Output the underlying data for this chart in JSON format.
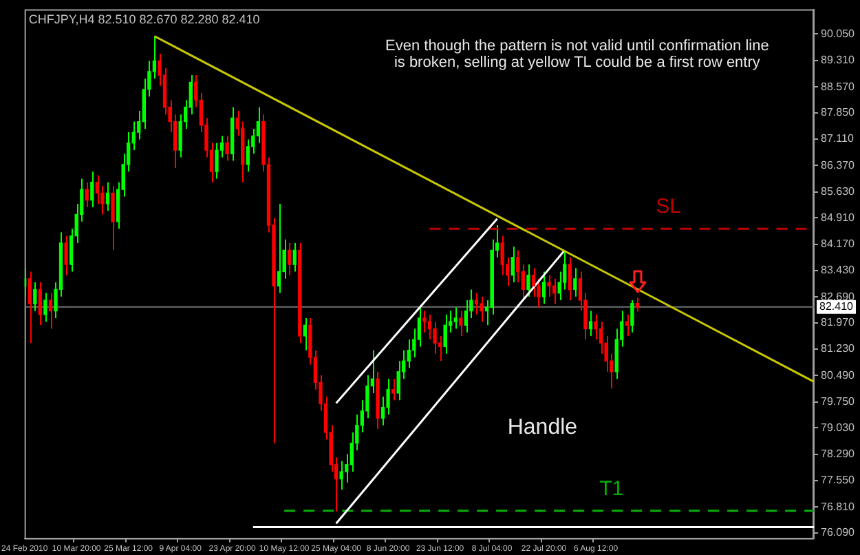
{
  "chart_data": {
    "type": "candlestick",
    "title": "CHFJPY,H4 82.510 82.670 82.280 82.410",
    "categories": [
      "24 Feb 2010",
      null,
      null,
      null,
      null,
      null,
      null,
      null,
      null,
      null,
      "10 Mar 20:00",
      null,
      null,
      null,
      null,
      null,
      null,
      null,
      null,
      null,
      "25 Mar 12:00",
      null,
      null,
      null,
      null,
      null,
      null,
      null,
      null,
      null,
      "9 Apr 04:00",
      null,
      null,
      null,
      null,
      null,
      null,
      null,
      null,
      null,
      "23 Apr 20:00",
      null,
      null,
      null,
      null,
      null,
      null,
      null,
      null,
      null,
      "10 May 12:00",
      null,
      null,
      null,
      null,
      null,
      null,
      null,
      null,
      null,
      "25 May 04:00",
      null,
      null,
      null,
      null,
      null,
      null,
      null,
      null,
      null,
      "8 Jun 20:00",
      null,
      null,
      null,
      null,
      null,
      null,
      null,
      null,
      null,
      "23 Jun 12:00",
      null,
      null,
      null,
      null,
      null,
      null,
      null,
      null,
      null,
      "8 Jul 04:00",
      null,
      null,
      null,
      null,
      null,
      null,
      null,
      null,
      null,
      "22 Jul 20:00",
      null,
      null,
      null,
      null,
      null,
      null,
      null,
      null,
      null,
      "6 Aug 12:00",
      null,
      null,
      null,
      null,
      null,
      null,
      null,
      null,
      null,
      null,
      null,
      null,
      null,
      null,
      null,
      null,
      null,
      null,
      null,
      null,
      null,
      null,
      null,
      null,
      null,
      null,
      null,
      null,
      null,
      null,
      null,
      null,
      null,
      null,
      null,
      null,
      null,
      null,
      null,
      null,
      null,
      null
    ],
    "series": [
      {
        "type": "candlestick",
        "ohlc": [
          [
            83.0,
            83.5,
            82.7,
            83.2
          ],
          [
            83.2,
            83.4,
            81.4,
            82.5
          ],
          [
            82.5,
            83.1,
            82.3,
            82.9
          ],
          [
            82.9,
            83.1,
            81.9,
            82.2
          ],
          [
            82.2,
            82.8,
            82.0,
            82.6
          ],
          [
            82.6,
            82.8,
            81.8,
            82.3
          ],
          [
            82.3,
            83.1,
            82.1,
            82.9
          ],
          [
            82.9,
            84.5,
            82.7,
            84.2
          ],
          [
            84.2,
            84.4,
            83.3,
            83.6
          ],
          [
            83.6,
            84.6,
            83.4,
            84.4
          ],
          [
            84.4,
            85.3,
            84.2,
            85.0
          ],
          [
            85.0,
            86.0,
            84.8,
            85.7
          ],
          [
            85.7,
            85.9,
            85.2,
            85.4
          ],
          [
            85.4,
            86.2,
            85.2,
            85.9
          ],
          [
            85.9,
            86.1,
            85.3,
            85.6
          ],
          [
            85.6,
            85.8,
            85.0,
            85.3
          ],
          [
            85.3,
            85.9,
            85.1,
            85.6
          ],
          [
            85.6,
            85.8,
            84.0,
            84.8
          ],
          [
            84.8,
            85.9,
            84.6,
            85.7
          ],
          [
            85.7,
            86.7,
            85.5,
            86.4
          ],
          [
            86.4,
            87.3,
            86.2,
            87.0
          ],
          [
            87.0,
            87.6,
            86.8,
            87.3
          ],
          [
            87.3,
            87.9,
            87.1,
            87.6
          ],
          [
            87.6,
            88.8,
            87.4,
            88.5
          ],
          [
            88.5,
            89.3,
            88.3,
            89.0
          ],
          [
            89.0,
            89.99,
            88.8,
            89.3
          ],
          [
            89.3,
            89.5,
            88.6,
            88.9
          ],
          [
            88.9,
            89.1,
            87.8,
            88.0
          ],
          [
            88.0,
            88.2,
            87.3,
            87.6
          ],
          [
            87.6,
            87.8,
            86.3,
            86.8
          ],
          [
            86.8,
            87.8,
            86.6,
            87.6
          ],
          [
            87.6,
            88.2,
            87.4,
            88.0
          ],
          [
            88.0,
            88.9,
            87.8,
            88.7
          ],
          [
            88.7,
            88.9,
            88.0,
            88.2
          ],
          [
            88.2,
            88.4,
            87.3,
            87.5
          ],
          [
            87.5,
            87.7,
            86.6,
            86.8
          ],
          [
            86.8,
            87.0,
            85.9,
            86.2
          ],
          [
            86.2,
            87.0,
            86.0,
            86.8
          ],
          [
            86.8,
            87.2,
            86.6,
            87.0
          ],
          [
            87.0,
            87.2,
            86.5,
            86.7
          ],
          [
            86.7,
            88.0,
            86.5,
            87.7
          ],
          [
            87.7,
            87.9,
            87.2,
            87.4
          ],
          [
            87.4,
            87.6,
            85.9,
            86.4
          ],
          [
            86.4,
            87.1,
            86.2,
            86.9
          ],
          [
            86.9,
            87.4,
            86.7,
            87.2
          ],
          [
            87.2,
            88.0,
            87.0,
            87.6
          ],
          [
            87.6,
            87.8,
            86.2,
            86.4
          ],
          [
            86.4,
            86.6,
            84.5,
            84.7
          ],
          [
            84.7,
            84.9,
            78.6,
            83.0
          ],
          [
            83.0,
            85.3,
            82.8,
            83.4
          ],
          [
            83.4,
            84.3,
            83.2,
            84.0
          ],
          [
            84.0,
            84.2,
            83.3,
            83.6
          ],
          [
            83.6,
            84.2,
            83.4,
            84.0
          ],
          [
            84.0,
            84.2,
            81.4,
            81.6
          ],
          [
            81.6,
            82.1,
            81.2,
            81.9
          ],
          [
            81.9,
            82.1,
            80.8,
            81.0
          ],
          [
            81.0,
            81.2,
            80.1,
            80.3
          ],
          [
            80.3,
            80.5,
            79.5,
            79.7
          ],
          [
            79.7,
            79.9,
            78.7,
            78.9
          ],
          [
            78.9,
            79.1,
            77.8,
            78.0
          ],
          [
            78.0,
            78.2,
            76.69,
            77.6
          ],
          [
            77.6,
            78.1,
            77.3,
            77.8
          ],
          [
            77.8,
            78.3,
            77.5,
            78.0
          ],
          [
            78.0,
            78.9,
            77.8,
            78.6
          ],
          [
            78.6,
            79.4,
            78.4,
            79.1
          ],
          [
            79.1,
            79.8,
            78.9,
            79.5
          ],
          [
            79.5,
            80.5,
            79.3,
            80.2
          ],
          [
            80.2,
            81.2,
            80.0,
            80.4
          ],
          [
            80.4,
            80.6,
            79.0,
            79.3
          ],
          [
            79.3,
            79.9,
            79.1,
            79.6
          ],
          [
            79.6,
            80.4,
            79.4,
            80.1
          ],
          [
            80.1,
            80.4,
            79.8,
            80.0
          ],
          [
            80.0,
            80.9,
            79.8,
            80.6
          ],
          [
            80.6,
            81.2,
            80.4,
            80.9
          ],
          [
            80.9,
            81.5,
            80.7,
            81.2
          ],
          [
            81.2,
            81.8,
            81.0,
            81.5
          ],
          [
            81.5,
            82.4,
            81.3,
            82.1
          ],
          [
            82.1,
            82.3,
            81.7,
            82.0
          ],
          [
            82.0,
            82.2,
            81.5,
            81.8
          ],
          [
            81.8,
            82.0,
            81.1,
            81.4
          ],
          [
            81.4,
            81.6,
            80.9,
            81.3
          ],
          [
            81.3,
            82.2,
            81.1,
            81.9
          ],
          [
            81.9,
            82.3,
            81.7,
            82.0
          ],
          [
            82.0,
            82.4,
            81.8,
            82.1
          ],
          [
            82.1,
            82.3,
            81.6,
            81.9
          ],
          [
            81.9,
            82.6,
            81.7,
            82.3
          ],
          [
            82.3,
            82.9,
            82.1,
            82.6
          ],
          [
            82.6,
            82.8,
            82.2,
            82.5
          ],
          [
            82.5,
            82.7,
            82.0,
            82.3
          ],
          [
            82.3,
            82.6,
            81.9,
            82.4
          ],
          [
            82.4,
            84.3,
            82.2,
            84.0
          ],
          [
            84.0,
            84.7,
            83.8,
            84.2
          ],
          [
            84.2,
            84.4,
            83.3,
            83.6
          ],
          [
            83.6,
            83.8,
            83.0,
            83.3
          ],
          [
            83.3,
            84.1,
            83.1,
            83.8
          ],
          [
            83.8,
            84.0,
            83.1,
            83.4
          ],
          [
            83.4,
            83.6,
            82.6,
            82.9
          ],
          [
            82.9,
            83.6,
            82.7,
            83.3
          ],
          [
            83.3,
            83.5,
            82.7,
            83.0
          ],
          [
            83.0,
            83.2,
            82.4,
            82.7
          ],
          [
            82.7,
            83.4,
            82.5,
            83.1
          ],
          [
            83.1,
            83.3,
            82.7,
            83.0
          ],
          [
            83.0,
            83.2,
            82.5,
            82.8
          ],
          [
            82.8,
            83.4,
            82.6,
            83.1
          ],
          [
            83.1,
            84.0,
            82.9,
            83.6
          ],
          [
            83.6,
            83.8,
            82.6,
            82.9
          ],
          [
            82.9,
            83.5,
            82.7,
            83.2
          ],
          [
            83.2,
            83.4,
            82.3,
            82.6
          ],
          [
            82.6,
            82.8,
            81.5,
            81.8
          ],
          [
            81.8,
            82.3,
            81.6,
            82.0
          ],
          [
            82.0,
            82.2,
            81.5,
            81.8
          ],
          [
            81.8,
            82.0,
            81.1,
            81.4
          ],
          [
            81.4,
            81.6,
            80.6,
            80.9
          ],
          [
            80.9,
            81.1,
            80.13,
            80.6
          ],
          [
            80.6,
            81.8,
            80.4,
            81.5
          ],
          [
            81.5,
            82.3,
            81.3,
            82.0
          ],
          [
            82.0,
            82.2,
            81.6,
            81.9
          ],
          [
            81.9,
            82.6,
            81.7,
            82.51
          ],
          [
            82.51,
            82.67,
            82.28,
            82.41
          ],
          null,
          null,
          null,
          null,
          null,
          null,
          null,
          null,
          null,
          null,
          null,
          null,
          null,
          null,
          null,
          null,
          null,
          null,
          null,
          null,
          null,
          null,
          null,
          null,
          null,
          null,
          null,
          null,
          null,
          null,
          null,
          null,
          null,
          null
        ],
        "colors": [
          "#00ff00",
          "#ff0000",
          "#00ff00",
          "#ff0000",
          "#00ff00",
          "#ff0000",
          "#00ff00",
          "#00ff00",
          "#ff0000",
          "#00ff00",
          "#00ff00",
          "#00ff00",
          "#ff0000",
          "#00ff00",
          "#ff0000",
          "#ff0000",
          "#00ff00",
          "#ff0000",
          "#00ff00",
          "#00ff00",
          "#00ff00",
          "#00ff00",
          "#00ff00",
          "#00ff00",
          "#00ff00",
          "#00ff00",
          "#ff0000",
          "#ff0000",
          "#ff0000",
          "#ff0000",
          "#00ff00",
          "#00ff00",
          "#00ff00",
          "#ff0000",
          "#ff0000",
          "#ff0000",
          "#ff0000",
          "#00ff00",
          "#00ff00",
          "#ff0000",
          "#00ff00",
          "#ff0000",
          "#ff0000",
          "#00ff00",
          "#00ff00",
          "#00ff00",
          "#ff0000",
          "#ff0000",
          "#ff0000",
          "#00ff00",
          "#00ff00",
          "#ff0000",
          "#00ff00",
          "#ff0000",
          "#00ff00",
          "#ff0000",
          "#ff0000",
          "#ff0000",
          "#ff0000",
          "#ff0000",
          "#ff0000",
          "#00ff00",
          "#00ff00",
          "#00ff00",
          "#00ff00",
          "#00ff00",
          "#00ff00",
          "#00ff00",
          "#ff0000",
          "#00ff00",
          "#00ff00",
          "#ff0000",
          "#00ff00",
          "#00ff00",
          "#00ff00",
          "#00ff00",
          "#00ff00",
          "#ff0000",
          "#ff0000",
          "#ff0000",
          "#ff0000",
          "#00ff00",
          "#00ff00",
          "#00ff00",
          "#ff0000",
          "#00ff00",
          "#00ff00",
          "#ff0000",
          "#ff0000",
          "#00ff00",
          "#00ff00",
          "#00ff00",
          "#ff0000",
          "#ff0000",
          "#00ff00",
          "#ff0000",
          "#ff0000",
          "#00ff00",
          "#ff0000",
          "#ff0000",
          "#00ff00",
          "#ff0000",
          "#ff0000",
          "#00ff00",
          "#00ff00",
          "#ff0000",
          "#00ff00",
          "#ff0000",
          "#ff0000",
          "#00ff00",
          "#ff0000",
          "#ff0000",
          "#ff0000",
          "#ff0000",
          "#00ff00",
          "#00ff00",
          "#ff0000",
          "#00ff00",
          "#ff0000",
          null,
          null,
          null,
          null,
          null,
          null,
          null,
          null,
          null,
          null,
          null,
          null,
          null,
          null,
          null,
          null,
          null,
          null,
          null,
          null,
          null,
          null,
          null,
          null,
          null,
          null,
          null,
          null,
          null,
          null,
          null,
          null,
          null,
          null
        ]
      },
      {
        "type": "line",
        "color": "#c8c800",
        "values": [
          null,
          null,
          null,
          null,
          null,
          null,
          null,
          null,
          null,
          null,
          null,
          null,
          null,
          null,
          null,
          null,
          null,
          null,
          null,
          null,
          null,
          null,
          null,
          null,
          null,
          89.99,
          null,
          null,
          null,
          null,
          null,
          null,
          null,
          null,
          null,
          null,
          null,
          null,
          null,
          null,
          null,
          null,
          null,
          null,
          null,
          null,
          null,
          null,
          null,
          null,
          null,
          null,
          null,
          null,
          null,
          null,
          null,
          null,
          null,
          null,
          null,
          null,
          null,
          null,
          null,
          null,
          null,
          null,
          null,
          null,
          null,
          null,
          null,
          null,
          null,
          null,
          null,
          null,
          null,
          null,
          null,
          null,
          null,
          null,
          null,
          null,
          null,
          null,
          null,
          null,
          null,
          null,
          null,
          null,
          null,
          null,
          null,
          null,
          null,
          null,
          null,
          null,
          null,
          null,
          null,
          null,
          null,
          null,
          null,
          null,
          null,
          null,
          null,
          null,
          null,
          null,
          null,
          null,
          null,
          null,
          null,
          null,
          null,
          null,
          null,
          null,
          null,
          null,
          null,
          null,
          null,
          null,
          null,
          null,
          null,
          null,
          null,
          null,
          null,
          null,
          null,
          null,
          null,
          null,
          null,
          null,
          null,
          null,
          null,
          null,
          null,
          null,
          80.32
        ]
      },
      {
        "type": "line",
        "color": "#ffffff",
        "values": [
          null,
          null,
          null,
          null,
          null,
          null,
          null,
          null,
          null,
          null,
          null,
          null,
          null,
          null,
          null,
          null,
          null,
          null,
          null,
          null,
          null,
          null,
          null,
          null,
          null,
          null,
          null,
          null,
          null,
          null,
          null,
          null,
          null,
          null,
          null,
          null,
          null,
          null,
          null,
          null,
          null,
          null,
          null,
          null,
          null,
          null,
          null,
          null,
          null,
          null,
          null,
          null,
          null,
          null,
          null,
          null,
          null,
          null,
          null,
          null,
          79.72,
          null,
          null,
          null,
          null,
          null,
          null,
          null,
          null,
          null,
          null,
          null,
          null,
          null,
          null,
          null,
          null,
          null,
          null,
          null,
          null,
          null,
          null,
          null,
          null,
          null,
          null,
          null,
          null,
          null,
          null,
          84.88,
          null,
          null,
          null,
          null,
          null,
          null,
          null,
          null,
          null,
          null,
          null,
          null,
          null,
          null,
          null,
          null,
          null,
          null,
          null,
          null,
          null,
          null,
          null,
          null,
          null,
          null,
          null,
          null,
          null,
          null,
          null,
          null,
          null,
          null,
          null,
          null,
          null,
          null,
          null,
          null,
          null,
          null,
          null,
          null,
          null,
          null,
          null,
          null,
          null,
          null,
          null,
          null,
          null,
          null,
          null,
          null,
          null,
          null,
          null,
          null,
          null
        ]
      },
      {
        "type": "line",
        "color": "#ffffff",
        "values": [
          null,
          null,
          null,
          null,
          null,
          null,
          null,
          null,
          null,
          null,
          null,
          null,
          null,
          null,
          null,
          null,
          null,
          null,
          null,
          null,
          null,
          null,
          null,
          null,
          null,
          null,
          null,
          null,
          null,
          null,
          null,
          null,
          null,
          null,
          null,
          null,
          null,
          null,
          null,
          null,
          null,
          null,
          null,
          null,
          null,
          null,
          null,
          null,
          null,
          null,
          null,
          null,
          null,
          null,
          null,
          null,
          null,
          null,
          null,
          null,
          76.35,
          null,
          null,
          null,
          null,
          null,
          null,
          null,
          null,
          null,
          null,
          null,
          null,
          null,
          null,
          null,
          null,
          null,
          null,
          null,
          null,
          null,
          null,
          null,
          null,
          null,
          null,
          null,
          null,
          null,
          null,
          null,
          null,
          null,
          null,
          null,
          null,
          null,
          null,
          null,
          null,
          null,
          null,
          null,
          84.0,
          null,
          null,
          null,
          null,
          null,
          null,
          null,
          null,
          null,
          null,
          null,
          null,
          null,
          null,
          null,
          null,
          null,
          null,
          null,
          null,
          null,
          null,
          null,
          null,
          null,
          null,
          null,
          null,
          null,
          null,
          null,
          null,
          null,
          null,
          null,
          null,
          null,
          null,
          null,
          null,
          null,
          null,
          null,
          null,
          null,
          null,
          null,
          null
        ]
      },
      {
        "type": "line",
        "color": "#ffffff",
        "values": [
          null,
          null,
          null,
          null,
          null,
          null,
          null,
          null,
          null,
          null,
          null,
          null,
          null,
          null,
          null,
          null,
          null,
          null,
          null,
          null,
          null,
          null,
          null,
          null,
          null,
          null,
          null,
          null,
          null,
          null,
          null,
          null,
          null,
          null,
          null,
          null,
          null,
          null,
          null,
          null,
          null,
          null,
          null,
          null,
          76.25,
          null,
          null,
          null,
          null,
          null,
          null,
          null,
          null,
          null,
          null,
          null,
          null,
          null,
          null,
          null,
          null,
          null,
          null,
          null,
          null,
          null,
          null,
          null,
          null,
          null,
          null,
          null,
          null,
          null,
          null,
          null,
          null,
          null,
          null,
          null,
          null,
          null,
          null,
          null,
          null,
          null,
          null,
          null,
          null,
          null,
          null,
          null,
          null,
          null,
          null,
          null,
          null,
          null,
          null,
          null,
          null,
          null,
          null,
          null,
          null,
          null,
          null,
          null,
          null,
          null,
          null,
          null,
          null,
          null,
          null,
          null,
          null,
          null,
          null,
          null,
          null,
          null,
          null,
          null,
          null,
          null,
          null,
          null,
          null,
          null,
          null,
          null,
          null,
          null,
          null,
          null,
          null,
          null,
          null,
          null,
          null,
          null,
          null,
          null,
          null,
          null,
          null,
          null,
          null,
          null,
          null,
          null,
          76.25
        ]
      },
      {
        "type": "line",
        "name": "SL",
        "color": "#c00000",
        "line_style": "dashed",
        "values": [
          null,
          null,
          null,
          null,
          null,
          null,
          null,
          null,
          null,
          null,
          null,
          null,
          null,
          null,
          null,
          null,
          null,
          null,
          null,
          null,
          null,
          null,
          null,
          null,
          null,
          null,
          null,
          null,
          null,
          null,
          null,
          null,
          null,
          null,
          null,
          null,
          null,
          null,
          null,
          null,
          null,
          null,
          null,
          null,
          null,
          null,
          null,
          null,
          null,
          null,
          null,
          null,
          null,
          null,
          null,
          null,
          null,
          null,
          null,
          null,
          null,
          null,
          null,
          null,
          null,
          null,
          null,
          null,
          null,
          null,
          null,
          null,
          null,
          null,
          null,
          null,
          null,
          null,
          84.6,
          null,
          null,
          null,
          null,
          null,
          null,
          null,
          null,
          null,
          null,
          null,
          null,
          null,
          null,
          null,
          null,
          null,
          null,
          null,
          null,
          null,
          null,
          null,
          null,
          null,
          null,
          null,
          null,
          null,
          null,
          null,
          null,
          null,
          null,
          null,
          null,
          null,
          null,
          null,
          null,
          null,
          null,
          null,
          null,
          null,
          null,
          null,
          null,
          null,
          null,
          null,
          null,
          null,
          null,
          null,
          null,
          null,
          null,
          null,
          null,
          null,
          null,
          null,
          null,
          null,
          null,
          null,
          null,
          null,
          null,
          null,
          null,
          null,
          84.6
        ]
      },
      {
        "type": "line",
        "name": "T1",
        "color": "#00b000",
        "line_style": "dashed",
        "values": [
          null,
          null,
          null,
          null,
          null,
          null,
          null,
          null,
          null,
          null,
          null,
          null,
          null,
          null,
          null,
          null,
          null,
          null,
          null,
          null,
          null,
          null,
          null,
          null,
          null,
          null,
          null,
          null,
          null,
          null,
          null,
          null,
          null,
          null,
          null,
          null,
          null,
          null,
          null,
          null,
          null,
          null,
          null,
          null,
          null,
          null,
          null,
          null,
          null,
          null,
          76.71,
          null,
          null,
          null,
          null,
          null,
          null,
          null,
          null,
          null,
          null,
          null,
          null,
          null,
          null,
          null,
          null,
          null,
          null,
          null,
          null,
          null,
          null,
          null,
          null,
          null,
          null,
          null,
          null,
          null,
          null,
          null,
          null,
          null,
          null,
          null,
          null,
          null,
          null,
          null,
          null,
          null,
          null,
          null,
          null,
          null,
          null,
          null,
          null,
          null,
          null,
          null,
          null,
          null,
          null,
          null,
          null,
          null,
          null,
          null,
          null,
          null,
          null,
          null,
          null,
          null,
          null,
          null,
          null,
          null,
          null,
          null,
          null,
          null,
          null,
          null,
          null,
          null,
          null,
          null,
          null,
          null,
          null,
          null,
          null,
          null,
          null,
          null,
          null,
          null,
          null,
          null,
          null,
          null,
          null,
          null,
          null,
          null,
          null,
          null,
          null,
          null,
          76.71
        ]
      }
    ],
    "ylim": [
      75.94,
      90.74
    ],
    "yticks": [
      {
        "value": 90.05,
        "label": "90.050"
      },
      {
        "value": 89.31,
        "label": "89.310"
      },
      {
        "value": 88.57,
        "label": "88.570"
      },
      {
        "value": 87.85,
        "label": "87.850"
      },
      {
        "value": 87.11,
        "label": "87.110"
      },
      {
        "value": 86.37,
        "label": "86.370"
      },
      {
        "value": 85.63,
        "label": "85.630"
      },
      {
        "value": 84.91,
        "label": "84.910"
      },
      {
        "value": 84.17,
        "label": "84.170"
      },
      {
        "value": 83.43,
        "label": "83.430"
      },
      {
        "value": 82.69,
        "label": "82.690"
      },
      {
        "value": 81.97,
        "label": "81.970"
      },
      {
        "value": 81.23,
        "label": "81.230"
      },
      {
        "value": 80.49,
        "label": "80.490"
      },
      {
        "value": 79.75,
        "label": "79.750"
      },
      {
        "value": 79.03,
        "label": "79.030"
      },
      {
        "value": 78.29,
        "label": "78.290"
      },
      {
        "value": 77.55,
        "label": "77.550"
      },
      {
        "value": 76.81,
        "label": "76.810"
      },
      {
        "value": 76.09,
        "label": "76.090"
      }
    ],
    "ref_lines": [
      {
        "axis": "y",
        "value": 82.41,
        "label": "82.410",
        "color": "#707070"
      }
    ],
    "annotations": [
      "Even though the pattern is not valid until confirmation line\nis broken, selling at yellow TL could be a first row entry",
      "Handle"
    ],
    "grid": false,
    "legend": false,
    "marker": "none"
  }
}
